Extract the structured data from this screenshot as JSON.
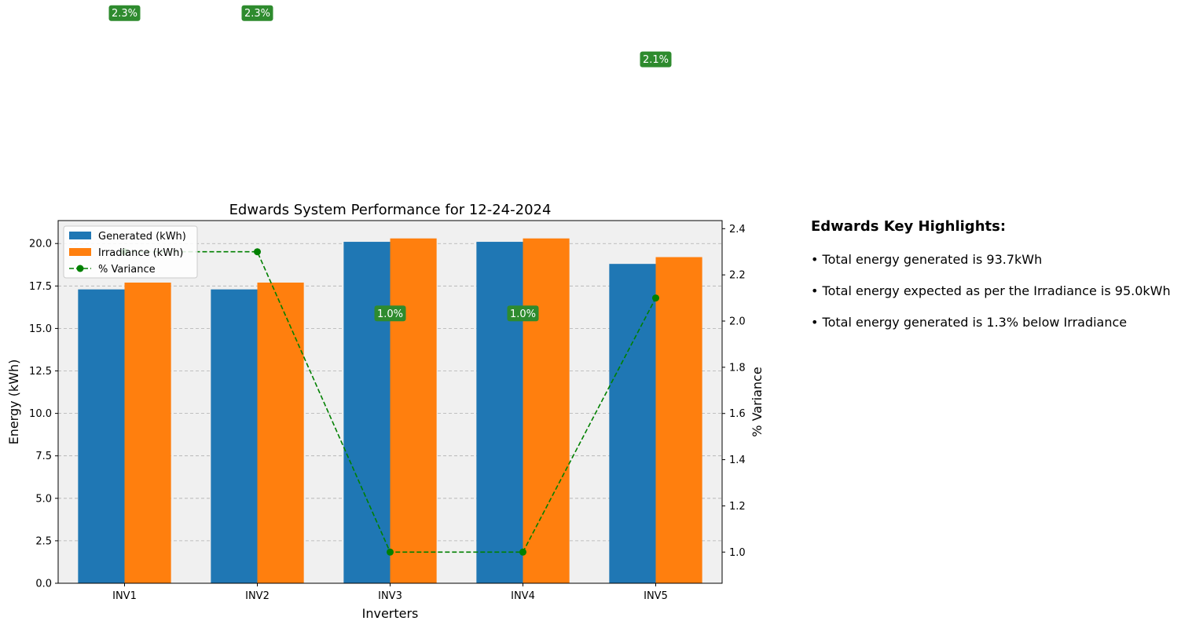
{
  "chart_data": {
    "type": "bar",
    "title": "Edwards System Performance for 12-24-2024",
    "xlabel": "Inverters",
    "ylabel": "Energy (kWh)",
    "y2label": "% Variance",
    "categories": [
      "INV1",
      "INV2",
      "INV3",
      "INV4",
      "INV5"
    ],
    "series": [
      {
        "name": "Generated (kWh)",
        "type": "bar",
        "axis": "left",
        "color": "#1f77b4",
        "values": [
          17.3,
          17.3,
          20.1,
          20.1,
          18.8
        ]
      },
      {
        "name": "Irradiance (kWh)",
        "type": "bar",
        "axis": "left",
        "color": "#ff7f0e",
        "values": [
          17.7,
          17.7,
          20.3,
          20.3,
          19.2
        ]
      },
      {
        "name": "% Variance",
        "type": "line",
        "axis": "right",
        "color": "#008000",
        "style": "dashed",
        "marker": "circle",
        "values": [
          2.3,
          2.3,
          1.0,
          1.0,
          2.1
        ]
      }
    ],
    "data_labels": [
      "2.3%",
      "2.3%",
      "1.0%",
      "1.0%",
      "2.1%"
    ],
    "ylim": [
      0,
      21.35
    ],
    "y2lim": [
      0.865,
      2.435
    ],
    "yticks": [
      "0.0",
      "2.5",
      "5.0",
      "7.5",
      "10.0",
      "12.5",
      "15.0",
      "17.5",
      "20.0"
    ],
    "y2ticks": [
      "1.0",
      "1.2",
      "1.4",
      "1.6",
      "1.8",
      "2.0",
      "2.2",
      "2.4"
    ],
    "grid": "horizontal dashed",
    "legend_position": "top-left",
    "plot_background": "#f0f0f0",
    "badge_color": "#2e8b2e"
  },
  "highlights": {
    "title": "Edwards Key Highlights:",
    "items": [
      "• Total energy generated is 93.7kWh",
      "• Total energy expected as per the Irradiance is 95.0kWh",
      "• Total energy generated is 1.3% below Irradiance"
    ]
  }
}
